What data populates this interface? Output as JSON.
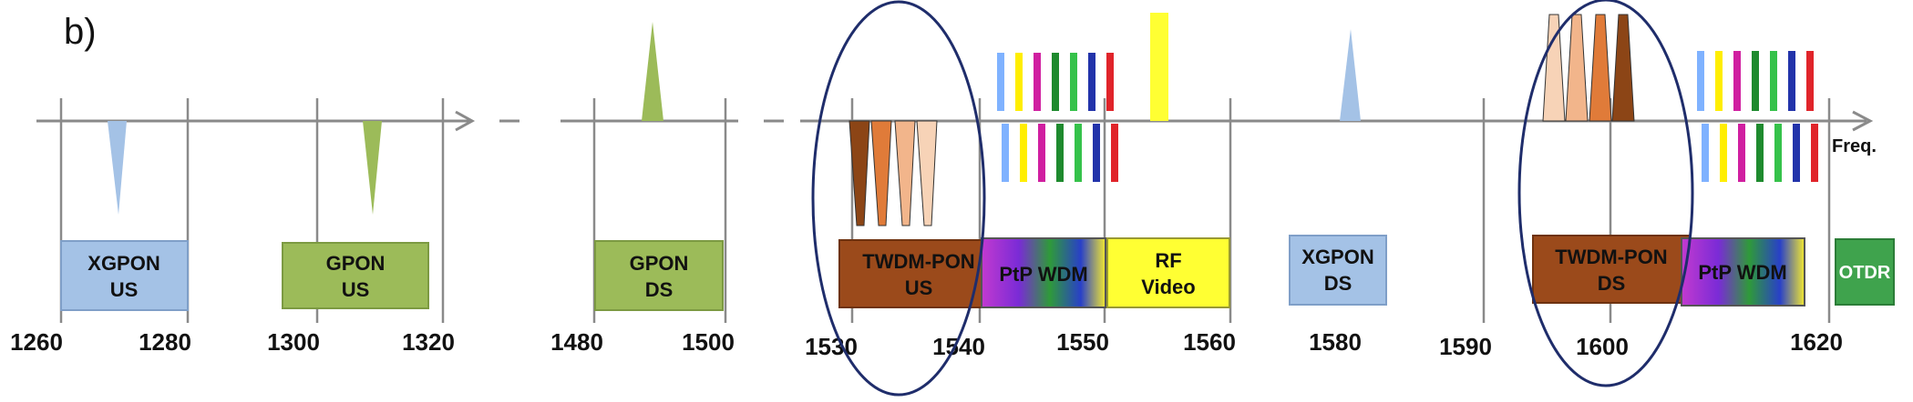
{
  "panel_label": "b)",
  "axis_label": "Freq.",
  "ticks": [
    "1260",
    "1280",
    "1300",
    "1320",
    "1480",
    "1500",
    "1530",
    "1540",
    "1550",
    "1560",
    "1580",
    "1590",
    "1600",
    "1620"
  ],
  "boxes": [
    {
      "id": "xgpon-us",
      "lines": [
        "XGPON",
        "US"
      ],
      "fill": "#a4c2e6",
      "stroke": "#7f9fc8",
      "text": "#111111"
    },
    {
      "id": "gpon-us",
      "lines": [
        "GPON",
        "US"
      ],
      "fill": "#9cbb59",
      "stroke": "#7c9a42",
      "text": "#111111"
    },
    {
      "id": "gpon-ds",
      "lines": [
        "GPON",
        "DS"
      ],
      "fill": "#9cbb59",
      "stroke": "#7c9a42",
      "text": "#111111"
    },
    {
      "id": "twdm-pon-us",
      "lines": [
        "TWDM-PON",
        "US"
      ],
      "fill": "#9b4a1b",
      "stroke": "#6e3210",
      "text": "#111111"
    },
    {
      "id": "ptp-wdm-1",
      "lines": [
        "PtP WDM"
      ],
      "fill": "gradient",
      "stroke": "#555555",
      "text": "#111111"
    },
    {
      "id": "rf-video",
      "lines": [
        "RF",
        "Video"
      ],
      "fill": "#ffff33",
      "stroke": "#999933",
      "text": "#111111"
    },
    {
      "id": "xgpon-ds",
      "lines": [
        "XGPON",
        "DS"
      ],
      "fill": "#a4c2e6",
      "stroke": "#7f9fc8",
      "text": "#111111"
    },
    {
      "id": "twdm-pon-ds",
      "lines": [
        "TWDM-PON",
        "DS"
      ],
      "fill": "#9b4a1b",
      "stroke": "#6e3210",
      "text": "#111111"
    },
    {
      "id": "ptp-wdm-2",
      "lines": [
        "PtP WDM"
      ],
      "fill": "gradient",
      "stroke": "#555555",
      "text": "#111111"
    },
    {
      "id": "otdr",
      "lines": [
        "OTDR"
      ],
      "fill": "#3fa34d",
      "stroke": "#2c7d38",
      "text": "#ffffff"
    }
  ],
  "colors": {
    "axis": "#8a8a8a",
    "ellipse": "#1f2d6b",
    "blue_peak": "#a4c2e6",
    "green_peak": "#9cbb59",
    "yellow_peak": "#ffff33",
    "twdm_shades": [
      "#8c4516",
      "#e07b39",
      "#f2b58b",
      "#f7d3b7"
    ],
    "wdm_lines": [
      "#7fb2ff",
      "#ffee00",
      "#d01fa0",
      "#1e8a2e",
      "#35c24a",
      "#2233aa",
      "#e0242a"
    ]
  }
}
